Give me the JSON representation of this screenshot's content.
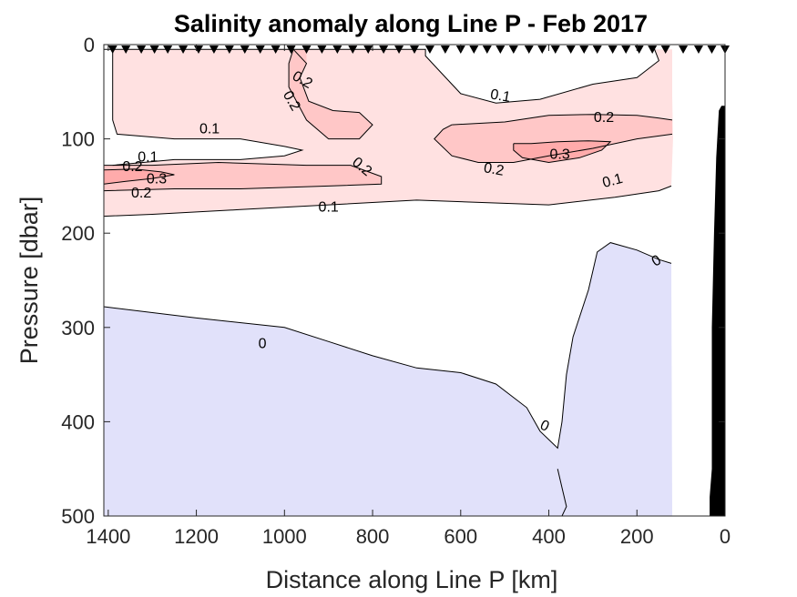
{
  "chart_data": {
    "type": "contour",
    "title": "Salinity anomaly along Line P - Feb 2017",
    "xlabel": "Distance along Line P [km]",
    "ylabel": "Pressure [dbar]",
    "x_reversed": true,
    "y_reversed": true,
    "xlim": [
      0,
      1410
    ],
    "ylim": [
      0,
      500
    ],
    "xticks": [
      1400,
      1200,
      1000,
      800,
      600,
      400,
      200,
      0
    ],
    "yticks": [
      0,
      100,
      200,
      300,
      400,
      500
    ],
    "fill_colors": {
      "positive_low": "#ffe1e1",
      "positive_mid": "#ffc7c7",
      "positive_high": "#ffabab",
      "negative": "#e1e1fa",
      "topography": "#000000"
    },
    "stations_km": [
      1390,
      1360,
      1325,
      1295,
      1265,
      1230,
      1195,
      1160,
      1125,
      1090,
      1055,
      1020,
      985,
      950,
      915,
      880,
      845,
      810,
      775,
      740,
      705,
      670,
      635,
      600,
      570,
      540,
      510,
      480,
      445,
      415,
      385,
      350,
      320,
      290,
      255,
      225,
      195,
      165,
      135,
      95,
      60,
      30,
      0
    ],
    "regions": [
      {
        "name": "positive-0.1",
        "fill": "positive_low",
        "polygon": [
          [
            1410,
            5
          ],
          [
            680,
            5
          ],
          [
            680,
            12
          ],
          [
            650,
            27
          ],
          [
            600,
            52
          ],
          [
            520,
            62
          ],
          [
            420,
            58
          ],
          [
            300,
            42
          ],
          [
            200,
            35
          ],
          [
            150,
            17
          ],
          [
            160,
            5
          ],
          [
            120,
            5
          ],
          [
            120,
            55
          ],
          [
            118,
            100
          ],
          [
            122,
            150
          ],
          [
            150,
            155
          ],
          [
            250,
            162
          ],
          [
            400,
            170
          ],
          [
            700,
            165
          ],
          [
            900,
            170
          ],
          [
            1100,
            175
          ],
          [
            1300,
            180
          ],
          [
            1410,
            182
          ]
        ]
      },
      {
        "name": "anomaly-lt-0.1-intrusion",
        "fill": "white",
        "polygon": [
          [
            1410,
            5
          ],
          [
            1390,
            5
          ],
          [
            1390,
            80
          ],
          [
            1380,
            95
          ],
          [
            1250,
            100
          ],
          [
            1100,
            100
          ],
          [
            1000,
            108
          ],
          [
            960,
            112
          ],
          [
            1000,
            118
          ],
          [
            1100,
            122
          ],
          [
            1250,
            122
          ],
          [
            1390,
            128
          ],
          [
            1410,
            130
          ]
        ]
      },
      {
        "name": "positive-0.2-upper",
        "fill": "positive_mid",
        "polygon": [
          [
            980,
            5
          ],
          [
            950,
            5
          ],
          [
            950,
            20
          ],
          [
            965,
            35
          ],
          [
            945,
            60
          ],
          [
            890,
            70
          ],
          [
            830,
            72
          ],
          [
            800,
            85
          ],
          [
            830,
            100
          ],
          [
            900,
            100
          ],
          [
            950,
            80
          ],
          [
            990,
            45
          ],
          [
            990,
            20
          ]
        ]
      },
      {
        "name": "positive-0.2-lower",
        "fill": "positive_mid",
        "polygon": [
          [
            1410,
            128
          ],
          [
            1300,
            128
          ],
          [
            1150,
            125
          ],
          [
            950,
            128
          ],
          [
            850,
            128
          ],
          [
            780,
            140
          ],
          [
            780,
            148
          ],
          [
            900,
            150
          ],
          [
            1100,
            153
          ],
          [
            1250,
            153
          ],
          [
            1410,
            155
          ]
        ]
      },
      {
        "name": "positive-0.2-right",
        "fill": "positive_mid",
        "polygon": [
          [
            620,
            85
          ],
          [
            500,
            82
          ],
          [
            400,
            75
          ],
          [
            300,
            74
          ],
          [
            200,
            75
          ],
          [
            150,
            78
          ],
          [
            120,
            80
          ],
          [
            120,
            95
          ],
          [
            200,
            100
          ],
          [
            300,
            110
          ],
          [
            400,
            118
          ],
          [
            480,
            125
          ],
          [
            560,
            125
          ],
          [
            620,
            118
          ],
          [
            660,
            100
          ],
          [
            640,
            90
          ]
        ]
      },
      {
        "name": "positive-0.3-upper",
        "fill": "positive_high",
        "polygon": [
          [
            480,
            105
          ],
          [
            440,
            105
          ],
          [
            380,
            103
          ],
          [
            310,
            102
          ],
          [
            260,
            103
          ],
          [
            280,
            112
          ],
          [
            330,
            120
          ],
          [
            400,
            125
          ],
          [
            460,
            120
          ],
          [
            480,
            112
          ]
        ]
      },
      {
        "name": "positive-0.3-lower",
        "fill": "positive_high",
        "polygon": [
          [
            1410,
            133
          ],
          [
            1340,
            132
          ],
          [
            1280,
            135
          ],
          [
            1250,
            138
          ],
          [
            1300,
            142
          ],
          [
            1360,
            145
          ],
          [
            1410,
            148
          ]
        ]
      },
      {
        "name": "negative-region",
        "fill": "negative",
        "polygon": [
          [
            1410,
            278
          ],
          [
            1200,
            290
          ],
          [
            1000,
            300
          ],
          [
            900,
            315
          ],
          [
            800,
            330
          ],
          [
            700,
            343
          ],
          [
            600,
            348
          ],
          [
            520,
            360
          ],
          [
            450,
            385
          ],
          [
            420,
            410
          ],
          [
            380,
            428
          ],
          [
            370,
            400
          ],
          [
            360,
            350
          ],
          [
            345,
            310
          ],
          [
            310,
            260
          ],
          [
            290,
            220
          ],
          [
            260,
            210
          ],
          [
            200,
            218
          ],
          [
            150,
            228
          ],
          [
            122,
            232
          ],
          [
            120,
            500
          ],
          [
            1410,
            500
          ]
        ]
      },
      {
        "name": "topography",
        "fill": "topography",
        "polygon": [
          [
            0,
            500
          ],
          [
            35,
            500
          ],
          [
            35,
            480
          ],
          [
            30,
            450
          ],
          [
            30,
            300
          ],
          [
            25,
            200
          ],
          [
            20,
            120
          ],
          [
            14,
            70
          ],
          [
            8,
            65
          ],
          [
            0,
            65
          ]
        ]
      }
    ],
    "contour_lines": [
      {
        "level": "0.1",
        "points": [
          [
            1410,
            5
          ],
          [
            680,
            5
          ],
          [
            680,
            12
          ],
          [
            650,
            27
          ],
          [
            600,
            52
          ],
          [
            520,
            62
          ],
          [
            420,
            58
          ],
          [
            300,
            42
          ],
          [
            200,
            35
          ],
          [
            150,
            17
          ],
          [
            160,
            5
          ]
        ]
      },
      {
        "level": "0.1",
        "points": [
          [
            1390,
            5
          ],
          [
            1390,
            80
          ],
          [
            1380,
            95
          ],
          [
            1250,
            100
          ],
          [
            1100,
            100
          ],
          [
            1000,
            108
          ],
          [
            960,
            112
          ],
          [
            1000,
            118
          ],
          [
            1100,
            122
          ],
          [
            1250,
            122
          ],
          [
            1390,
            128
          ]
        ]
      },
      {
        "level": "0.1",
        "points": [
          [
            1410,
            182
          ],
          [
            1300,
            180
          ],
          [
            1100,
            175
          ],
          [
            900,
            170
          ],
          [
            700,
            165
          ],
          [
            400,
            170
          ],
          [
            250,
            162
          ],
          [
            150,
            155
          ],
          [
            122,
            150
          ]
        ]
      },
      {
        "level": "0.2",
        "points": [
          [
            980,
            5
          ],
          [
            950,
            20
          ],
          [
            965,
            35
          ],
          [
            945,
            60
          ],
          [
            890,
            70
          ],
          [
            830,
            72
          ],
          [
            800,
            85
          ],
          [
            830,
            100
          ],
          [
            900,
            100
          ],
          [
            950,
            80
          ],
          [
            990,
            45
          ],
          [
            990,
            20
          ],
          [
            980,
            5
          ]
        ]
      },
      {
        "level": "0.2",
        "points": [
          [
            1410,
            128
          ],
          [
            1300,
            128
          ],
          [
            1150,
            125
          ],
          [
            950,
            128
          ],
          [
            850,
            128
          ],
          [
            780,
            140
          ],
          [
            780,
            148
          ],
          [
            900,
            150
          ],
          [
            1100,
            153
          ],
          [
            1250,
            153
          ],
          [
            1410,
            155
          ]
        ]
      },
      {
        "level": "0.2",
        "points": [
          [
            620,
            85
          ],
          [
            500,
            82
          ],
          [
            400,
            75
          ],
          [
            300,
            74
          ],
          [
            200,
            75
          ],
          [
            150,
            78
          ],
          [
            120,
            80
          ]
        ]
      },
      {
        "level": "0.2",
        "points": [
          [
            120,
            95
          ],
          [
            200,
            100
          ],
          [
            300,
            110
          ],
          [
            400,
            118
          ],
          [
            480,
            125
          ],
          [
            560,
            125
          ],
          [
            620,
            118
          ],
          [
            660,
            100
          ],
          [
            640,
            90
          ],
          [
            620,
            85
          ]
        ]
      },
      {
        "level": "0.3",
        "points": [
          [
            480,
            105
          ],
          [
            440,
            105
          ],
          [
            380,
            103
          ],
          [
            310,
            102
          ],
          [
            260,
            103
          ],
          [
            280,
            112
          ],
          [
            330,
            120
          ],
          [
            400,
            125
          ],
          [
            460,
            120
          ],
          [
            480,
            112
          ],
          [
            480,
            105
          ]
        ]
      },
      {
        "level": "0.3",
        "points": [
          [
            1410,
            133
          ],
          [
            1340,
            132
          ],
          [
            1280,
            135
          ],
          [
            1250,
            138
          ],
          [
            1300,
            142
          ],
          [
            1360,
            145
          ],
          [
            1410,
            148
          ]
        ]
      },
      {
        "level": "0",
        "points": [
          [
            1410,
            278
          ],
          [
            1200,
            290
          ],
          [
            1000,
            300
          ],
          [
            900,
            315
          ],
          [
            800,
            330
          ],
          [
            700,
            343
          ],
          [
            600,
            348
          ],
          [
            520,
            360
          ],
          [
            450,
            385
          ],
          [
            420,
            410
          ],
          [
            380,
            428
          ],
          [
            370,
            400
          ],
          [
            360,
            350
          ],
          [
            345,
            310
          ],
          [
            310,
            260
          ],
          [
            290,
            220
          ],
          [
            260,
            210
          ],
          [
            200,
            218
          ],
          [
            150,
            228
          ],
          [
            122,
            232
          ]
        ]
      },
      {
        "level": "0",
        "points": [
          [
            380,
            450
          ],
          [
            370,
            470
          ],
          [
            360,
            490
          ],
          [
            370,
            500
          ]
        ]
      }
    ],
    "contour_labels": [
      {
        "text": "0.2",
        "x": 960,
        "y": 38,
        "angle": 30
      },
      {
        "text": "0.2",
        "x": 985,
        "y": 60,
        "angle": 60
      },
      {
        "text": "0.1",
        "x": 1170,
        "y": 90,
        "angle": 0
      },
      {
        "text": "0.1",
        "x": 1310,
        "y": 120,
        "angle": 0
      },
      {
        "text": "0.2",
        "x": 1345,
        "y": 130,
        "angle": 0
      },
      {
        "text": "0.3",
        "x": 1290,
        "y": 143,
        "angle": 0
      },
      {
        "text": "0.2",
        "x": 1325,
        "y": 158,
        "angle": 0
      },
      {
        "text": "0.2",
        "x": 825,
        "y": 130,
        "angle": 40
      },
      {
        "text": "0.1",
        "x": 900,
        "y": 173,
        "angle": 0
      },
      {
        "text": "0.1",
        "x": 510,
        "y": 55,
        "angle": 10
      },
      {
        "text": "0.2",
        "x": 275,
        "y": 78,
        "angle": 0
      },
      {
        "text": "0.3",
        "x": 375,
        "y": 117,
        "angle": 0
      },
      {
        "text": "0.2",
        "x": 525,
        "y": 133,
        "angle": 10
      },
      {
        "text": "0.1",
        "x": 255,
        "y": 145,
        "angle": -15
      },
      {
        "text": "0",
        "x": 155,
        "y": 230,
        "angle": -30
      },
      {
        "text": "0",
        "x": 1050,
        "y": 318,
        "angle": 0
      },
      {
        "text": "0",
        "x": 410,
        "y": 405,
        "angle": 25
      }
    ]
  }
}
